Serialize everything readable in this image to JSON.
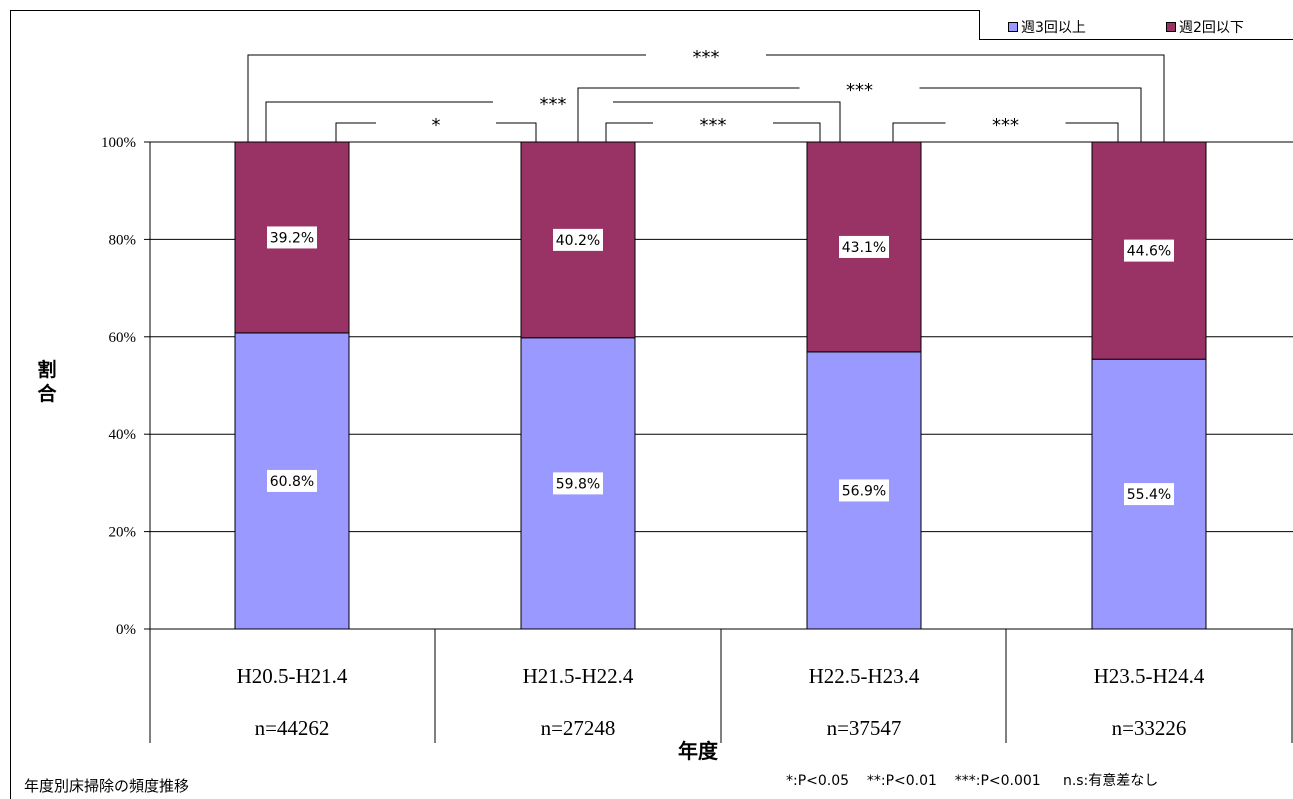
{
  "chart_data": {
    "type": "bar",
    "stacked": true,
    "categories": [
      "H20.5-H21.4",
      "H21.5-H22.4",
      "H22.5-H23.4",
      "H23.5-H24.4"
    ],
    "sample_sizes": [
      "n=44262",
      "n=27248",
      "n=37547",
      "n=33226"
    ],
    "series": [
      {
        "name": "週3回以上",
        "values": [
          60.8,
          59.8,
          56.9,
          55.4
        ],
        "labels": [
          "60.8%",
          "59.8%",
          "56.9%",
          "55.4%"
        ],
        "color": "#9999ff"
      },
      {
        "name": "週2回以下",
        "values": [
          39.2,
          40.2,
          43.1,
          44.6
        ],
        "labels": [
          "39.2%",
          "40.2%",
          "43.1%",
          "44.6%"
        ],
        "color": "#993366"
      }
    ],
    "xlabel": "年度",
    "ylabel": "割合",
    "ylim": [
      0,
      100
    ],
    "yticks": [
      "0%",
      "20%",
      "40%",
      "60%",
      "80%",
      "100%"
    ],
    "grid": true,
    "legend_position": "top-right",
    "significance": [
      {
        "from": 0,
        "to": 1,
        "mark": "*"
      },
      {
        "from": 1,
        "to": 2,
        "mark": "***"
      },
      {
        "from": 2,
        "to": 3,
        "mark": "***"
      },
      {
        "from": 0,
        "to": 2,
        "mark": "***"
      },
      {
        "from": 1,
        "to": 3,
        "mark": "***"
      },
      {
        "from": 0,
        "to": 3,
        "mark": "***"
      }
    ]
  },
  "footnote": "年度別床掃除の頻度推移",
  "significance_legend": "*:P<0.05    **:P<0.01    ***:P<0.001     n.s:有意差なし"
}
